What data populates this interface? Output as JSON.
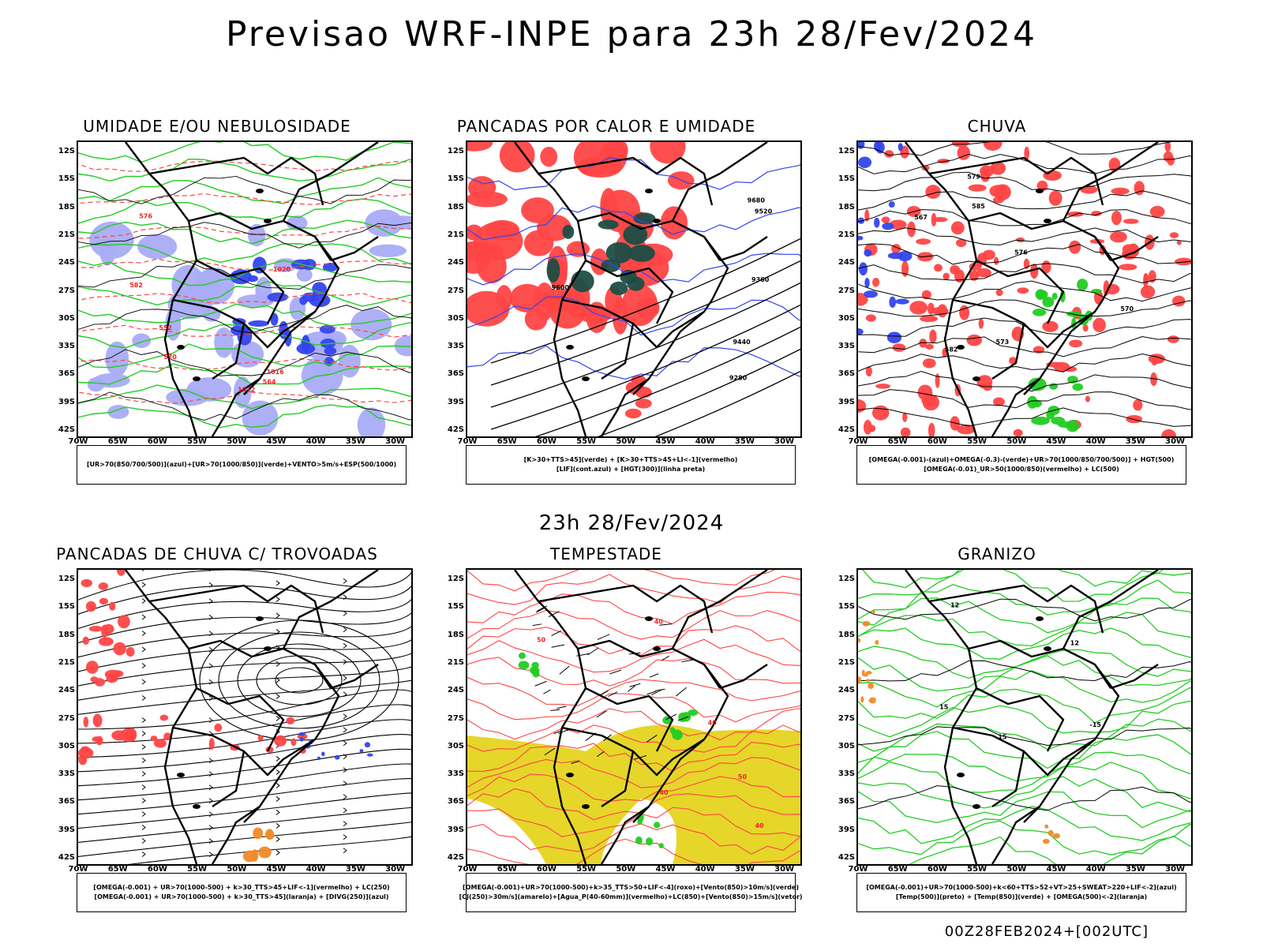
{
  "title": "Previsao WRF-INPE  para 23h 28/Fev/2024",
  "middle_title": "23h 28/Fev/2024",
  "footer": "00Z28FEB2024+[002UTC]",
  "axis": {
    "lat_ticks": [
      "12S",
      "15S",
      "18S",
      "21S",
      "24S",
      "27S",
      "30S",
      "33S",
      "36S",
      "39S",
      "42S"
    ],
    "lon_ticks": [
      "70W",
      "65W",
      "60W",
      "55W",
      "50W",
      "45W",
      "40W",
      "35W",
      "30W"
    ]
  },
  "colors": {
    "blue": "#3344ee",
    "lightblue": "#a9acf5",
    "green": "#22cc22",
    "red": "#ff4444",
    "darkgreen": "#1e4d46",
    "yellow": "#e6d62a",
    "orange": "#f08a28",
    "black": "#000000"
  },
  "panels": [
    {
      "title": "UMIDADE E/OU NEBULOSIDADE",
      "legend": [
        "[UR>70(850/700/500)](azul)+[UR>70(1000/850)](verde)+VENTO>5m/s+ESP(500/1000)"
      ],
      "contour_labels": [
        "1012",
        "1016",
        "1020",
        "576",
        "582",
        "570",
        "564",
        "552"
      ]
    },
    {
      "title": "PANCADAS POR CALOR E UMIDADE",
      "legend": [
        "[K>30+TTS>45](verde)  +  [K>30+TTS>45+LI<-1](vermelho)",
        "[LIF](cont.azul)  +  [HGT(300)](linha preta)"
      ],
      "contour_labels": [
        "9680",
        "9600",
        "9520",
        "9440",
        "9360",
        "9280"
      ]
    },
    {
      "title": "CHUVA",
      "legend": [
        "[OMEGA(-0.001)-(azul)+OMEGA(-0.3)-(verde)+UR>70(1000/850/700/500)]  +  HGT(500)",
        "[OMEGA(-0.01)_UR>50(1000/850)(vermelho)  +  LC(500)"
      ],
      "contour_labels": [
        "585",
        "582",
        "579",
        "576",
        "573",
        "570",
        "567"
      ]
    },
    {
      "title": "PANCADAS DE CHUVA C/ TROVOADAS",
      "legend": [
        "[OMEGA(-0.001)  +  UR>70(1000-500)  +  k>30_TTS>45+LIF<-1](vermelho)  +  LC(250)",
        "[OMEGA(-0.001)  +  UR>70(1000-500)  +  k>30_TTS>45](laranja)  +  [DIVG(250)](azul)"
      ],
      "contour_labels": []
    },
    {
      "title": "TEMPESTADE",
      "legend": [
        "[OMEGA(-0.001)+UR>70(1000-500)+k>35_TTS>50+LIF<-4](roxo)+[Vento(850)>10m/s](verde)",
        "[CJ(250)>30m/s](amarelo)+[Agua_P(40-60mm)](vermelho)+LC(850)+[Vento(850)>15m/s](vetor)"
      ],
      "contour_labels": [
        "40",
        "40",
        "40",
        "40",
        "50",
        "50"
      ]
    },
    {
      "title": "GRANIZO",
      "legend": [
        "[OMEGA(-0.001)+UR>70(1000-500)+k<60+TTS>52+VT>25+SWEAT>220+LIF<-2](azul)",
        "[Temp(500)](preto)  +  [Temp(850)](verde)  +  [OMEGA(500)<-2](laranja)"
      ],
      "contour_labels": [
        "15",
        "12",
        "15",
        "12",
        "-15"
      ]
    }
  ]
}
